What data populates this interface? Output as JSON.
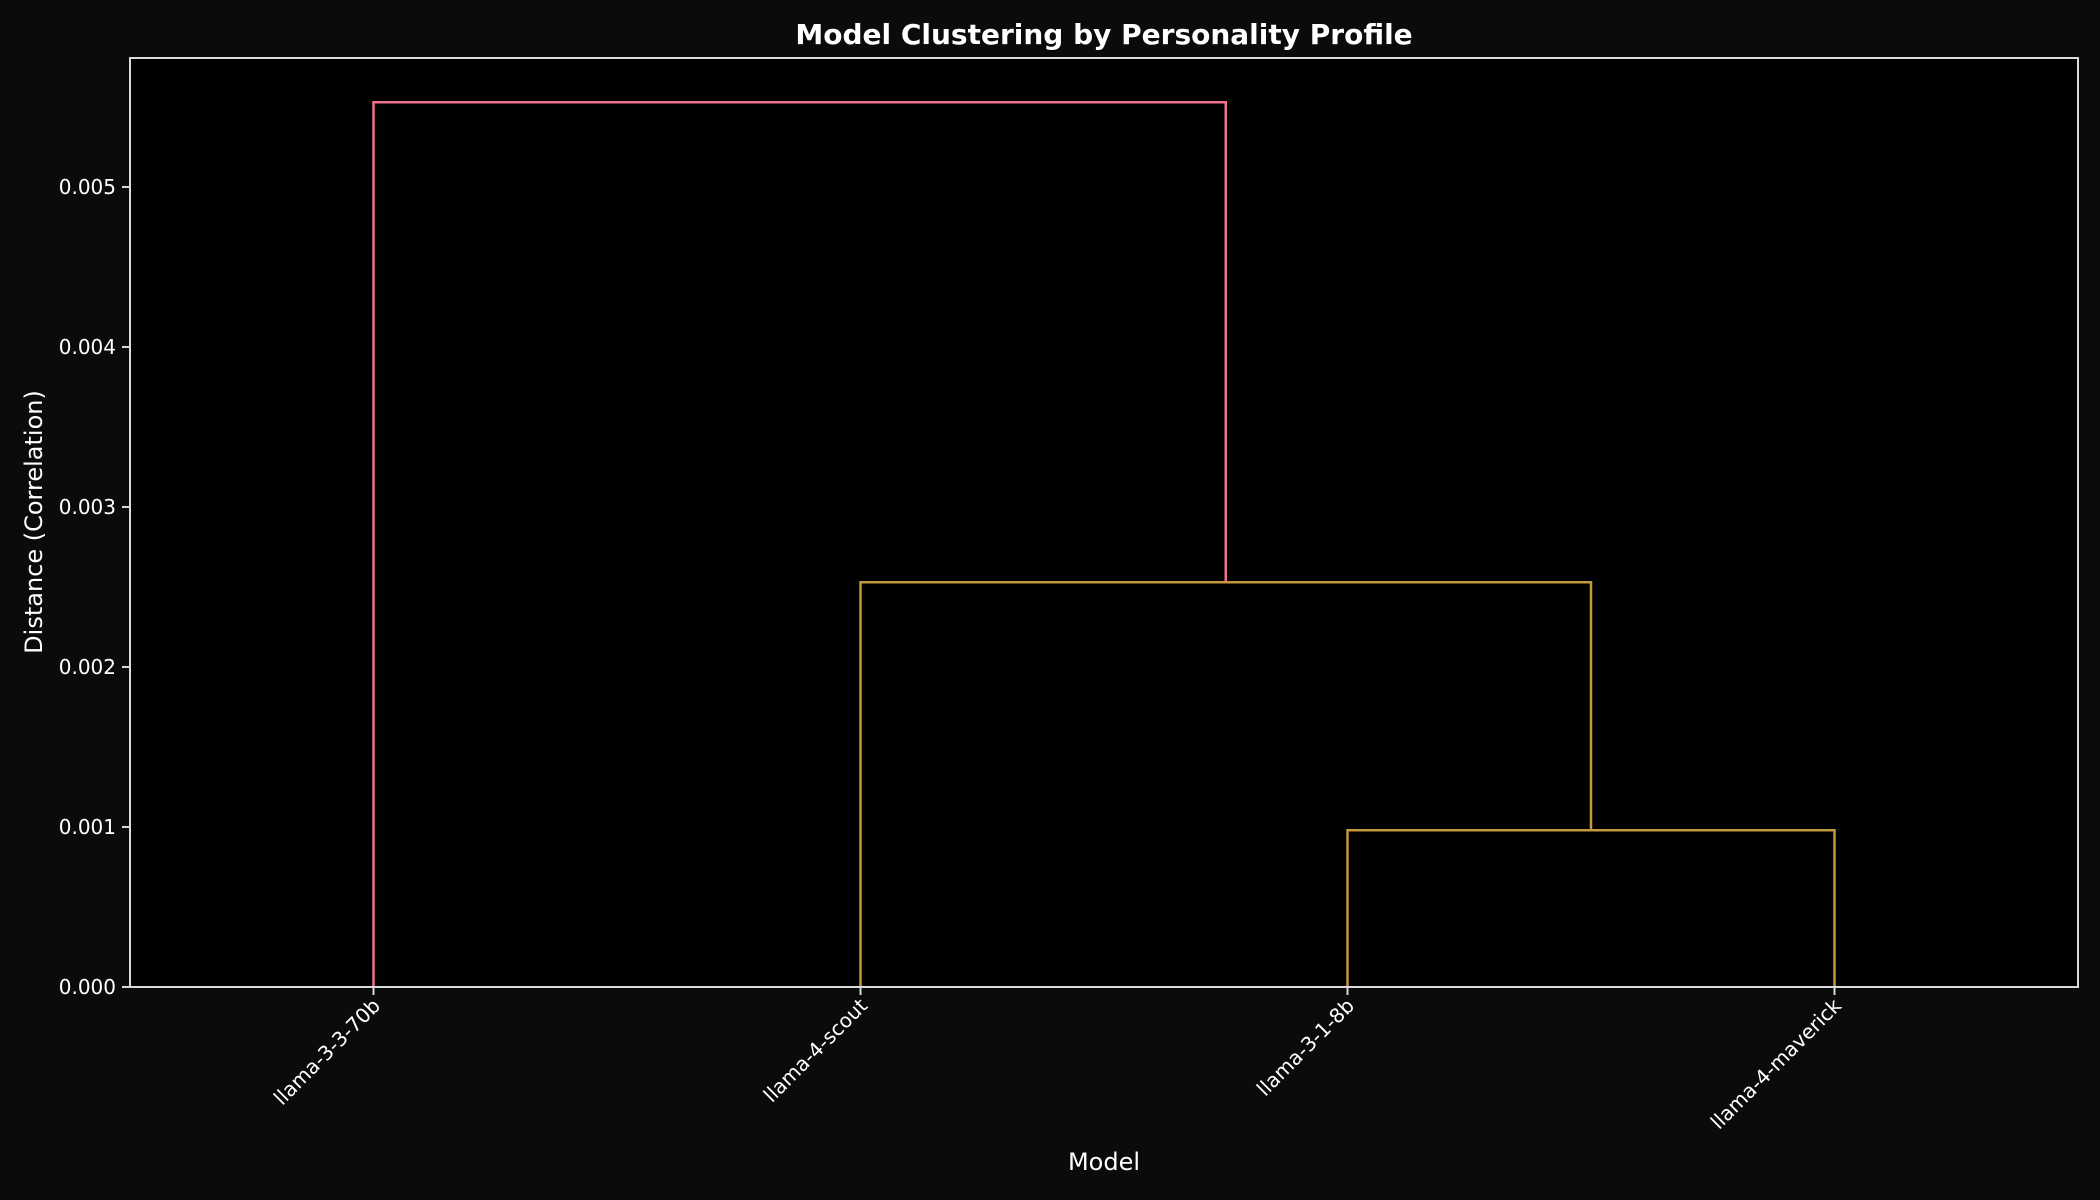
{
  "chart_data": {
    "type": "dendrogram",
    "title": "Model Clustering by Personality Profile",
    "xlabel": "Model",
    "ylabel": "Distance (Correlation)",
    "ylim": [
      0,
      0.0058
    ],
    "yticks": [
      0.0,
      0.001,
      0.002,
      0.003,
      0.004,
      0.005
    ],
    "ytick_labels": [
      "0.000",
      "0.001",
      "0.002",
      "0.003",
      "0.004",
      "0.005"
    ],
    "categories": [
      "llama-3-3-70b",
      "llama-4-scout",
      "llama-3-1-8b",
      "llama-4-maverick"
    ],
    "grid": false,
    "legend": null,
    "merges": [
      {
        "left": "llama-3-1-8b",
        "right": "llama-4-maverick",
        "distance": 0.00098,
        "color": "#c4993b"
      },
      {
        "left": "llama-4-scout",
        "right": "(llama-3-1-8b, llama-4-maverick)",
        "distance": 0.00253,
        "color": "#c4993b"
      },
      {
        "left": "llama-3-3-70b",
        "right": "(llama-4-scout, llama-3-1-8b, llama-4-maverick)",
        "distance": 0.00553,
        "color": "#f0728a"
      }
    ],
    "colors": {
      "cluster_link": "#c4993b",
      "root_link": "#f0728a",
      "figure_background": "#0b0b0b",
      "axes_background": "#000000",
      "axes_edge": "#d9d9d9"
    }
  }
}
